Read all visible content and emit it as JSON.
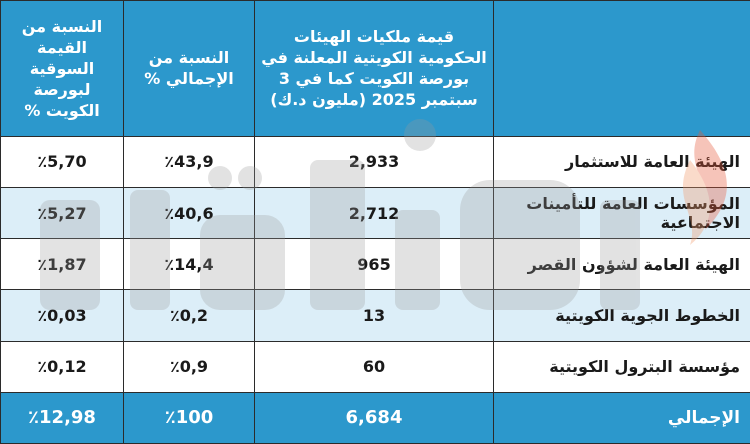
{
  "header": {
    "value_col": "قيمة ملكيات الهيئات الحكومية الكويتية المعلنة في بورصة الكويت كما في 3 سبتمبر 2025 (مليون د.ك)",
    "share_total_col": "النسبة من الإجمالي %",
    "share_market_col": "النسبة من القيمة السوقية لبورصة الكويت %"
  },
  "rows": [
    {
      "name": "الهيئة العامة للاستثمار",
      "value": "2,933",
      "share_total": "٪43,9",
      "share_market": "٪5,70"
    },
    {
      "name": "المؤسسات العامة للتأمينات الاجتماعية",
      "value": "2,712",
      "share_total": "٪40,6",
      "share_market": "٪5,27"
    },
    {
      "name": "الهيئة العامة لشؤون القصر",
      "value": "965",
      "share_total": "٪14,4",
      "share_market": "٪1,87"
    },
    {
      "name": "الخطوط الجوية الكويتية",
      "value": "13",
      "share_total": "٪0,2",
      "share_market": "٪0,03"
    },
    {
      "name": "مؤسسة البترول الكويتية",
      "value": "60",
      "share_total": "٪0,9",
      "share_market": "٪0,12"
    }
  ],
  "total": {
    "name": "الإجمالي",
    "value": "6,684",
    "share_total": "٪100",
    "share_market": "٪12,98"
  },
  "colors": {
    "header": "#2c98cc",
    "alt_row": "#dceef8",
    "watermark": "#9a9a9a",
    "flame": "#e85a3a"
  }
}
